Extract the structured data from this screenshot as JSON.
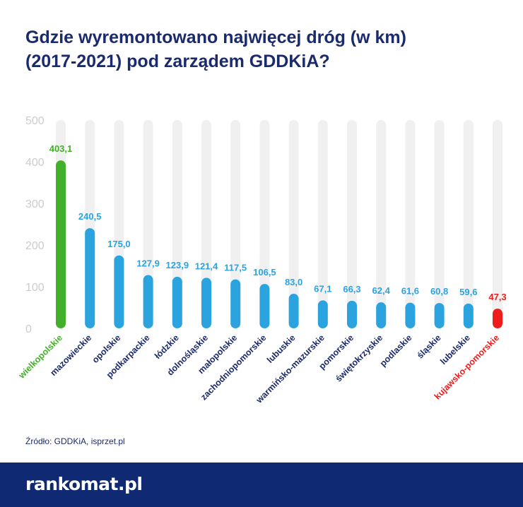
{
  "title": {
    "line1": "Gdzie wyremontowano najwięcej dróg (w km)",
    "line2": "(2017-2021) pod zarządem GDDKiA?"
  },
  "chart_data": {
    "type": "bar",
    "categories": [
      "wielkopolskie",
      "mazowieckie",
      "opolskie",
      "podkarpackie",
      "łódzkie",
      "dolnośląskie",
      "małopolskie",
      "zachodniopomorskie",
      "lubuskie",
      "warmińsko-mazurskie",
      "pomorskie",
      "świętokrzyskie",
      "podlaskie",
      "śląskie",
      "lubelskie",
      "kujawsko-pomorskie"
    ],
    "values": [
      403.1,
      240.5,
      175.0,
      127.9,
      123.9,
      121.4,
      117.5,
      106.5,
      83.0,
      67.1,
      66.3,
      62.4,
      61.6,
      60.8,
      59.6,
      47.3
    ],
    "value_labels": [
      "403,1",
      "240,5",
      "175,0",
      "127,9",
      "123,9",
      "121,4",
      "117,5",
      "106,5",
      "83,0",
      "67,1",
      "66,3",
      "62,4",
      "61,6",
      "60,8",
      "59,6",
      "47,3"
    ],
    "yticks": [
      0,
      100,
      200,
      300,
      400,
      500
    ],
    "ylim": [
      0,
      500
    ],
    "xlabel": "",
    "ylabel": "",
    "grid": false,
    "colors": {
      "default": "#2aa3df",
      "highest": "#43b02a",
      "lowest": "#ee1c1c",
      "track": "#f0f0f0",
      "category_text": "#1b2a6b",
      "tick_text": "#cccccc"
    }
  },
  "source": "Źródło: GDDKiA, isprzet.pl",
  "footer": {
    "logo": "rankomat.pl"
  }
}
